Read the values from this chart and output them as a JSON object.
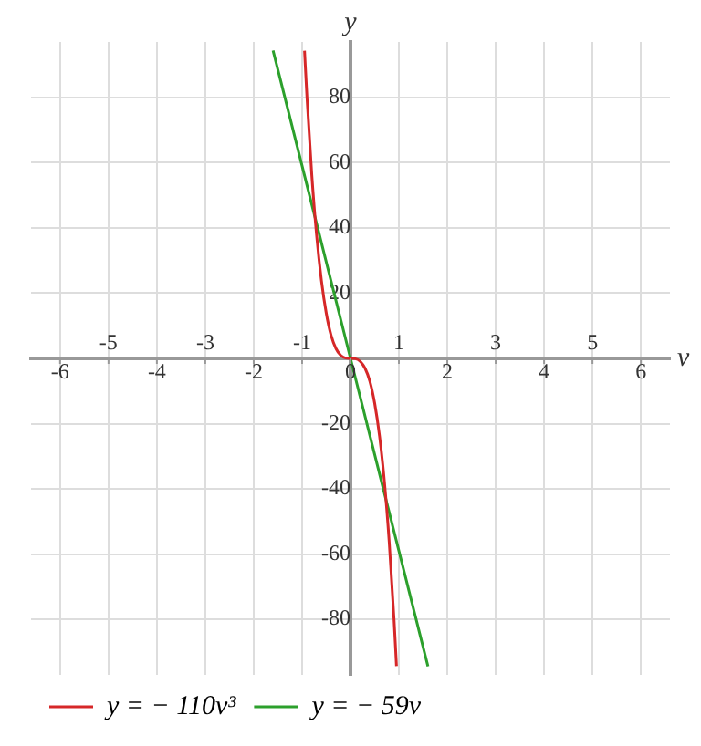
{
  "chart_data": {
    "type": "line",
    "xlabel": "v",
    "ylabel": "y",
    "xlim": [
      -6.6,
      6.6
    ],
    "ylim": [
      -97,
      97
    ],
    "xticks": [
      -6,
      -4,
      -2,
      0,
      2,
      4,
      6
    ],
    "x2lim": [
      -6.6,
      6.6
    ],
    "x2ticks": [
      -5,
      -3,
      -1,
      1,
      3,
      5
    ],
    "yticks": [
      -80,
      -60,
      -40,
      -20,
      {
        "value": 0,
        "label": null
      },
      20,
      40,
      60,
      80
    ],
    "grid": true,
    "legend": "bottom left",
    "marker": "none",
    "line_style": "solid",
    "series": [
      {
        "name": "y = − 110v³",
        "color": "#d62728",
        "x": [
          -0.95,
          -0.9,
          -0.8,
          -0.7,
          -0.6,
          -0.5,
          -0.4,
          -0.3,
          -0.2,
          -0.1,
          0,
          0.1,
          0.2,
          0.3,
          0.4,
          0.5,
          0.6,
          0.7,
          0.8,
          0.9,
          0.95
        ],
        "values": [
          94.3,
          80.2,
          56.3,
          37.7,
          23.8,
          13.8,
          7.0,
          3.0,
          0.9,
          0.1,
          0,
          -0.1,
          -0.9,
          -3.0,
          -7.0,
          -13.8,
          -23.8,
          -37.7,
          -56.3,
          -80.2,
          -94.3
        ]
      },
      {
        "name": "y = − 59v",
        "color": "#2ca02c",
        "x": [
          -1.6,
          0,
          1.6
        ],
        "values": [
          94.4,
          0,
          -94.4
        ]
      }
    ]
  }
}
